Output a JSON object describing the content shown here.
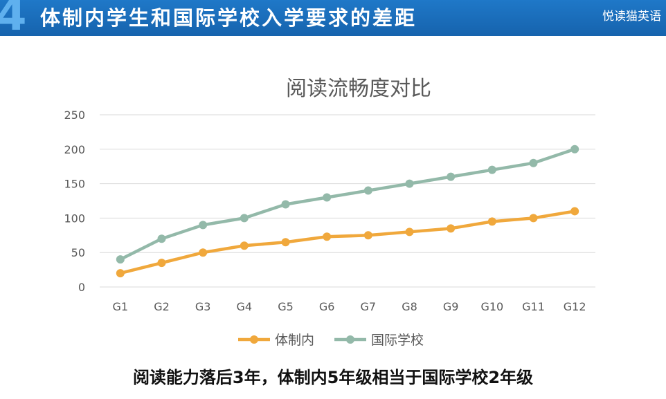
{
  "banner": {
    "number": "4",
    "title": "体制内学生和国际学校入学要求的差距",
    "brand": "悦读猫英语"
  },
  "caption": "阅读能力落后3年，体制内5年级相当于国际学校2年级",
  "colors": {
    "banner": "#1a6db9",
    "series_tizhinei": "#f0a83c",
    "series_guoji": "#93b9a9",
    "grid": "#d9d9d9",
    "axis_text": "#595959"
  },
  "chart_data": {
    "type": "line",
    "title": "阅读流畅度对比",
    "xlabel": "",
    "ylabel": "",
    "categories": [
      "G1",
      "G2",
      "G3",
      "G4",
      "G5",
      "G6",
      "G7",
      "G8",
      "G9",
      "G10",
      "G11",
      "G12"
    ],
    "ylim": [
      0,
      250
    ],
    "yticks": [
      0,
      50,
      100,
      150,
      200,
      250
    ],
    "grid": true,
    "legend": "bottom",
    "series": [
      {
        "name": "体制内",
        "values": [
          20,
          35,
          50,
          60,
          65,
          73,
          75,
          80,
          85,
          95,
          100,
          110
        ]
      },
      {
        "name": "国际学校",
        "values": [
          40,
          70,
          90,
          100,
          120,
          130,
          140,
          150,
          160,
          170,
          180,
          200
        ]
      }
    ]
  }
}
